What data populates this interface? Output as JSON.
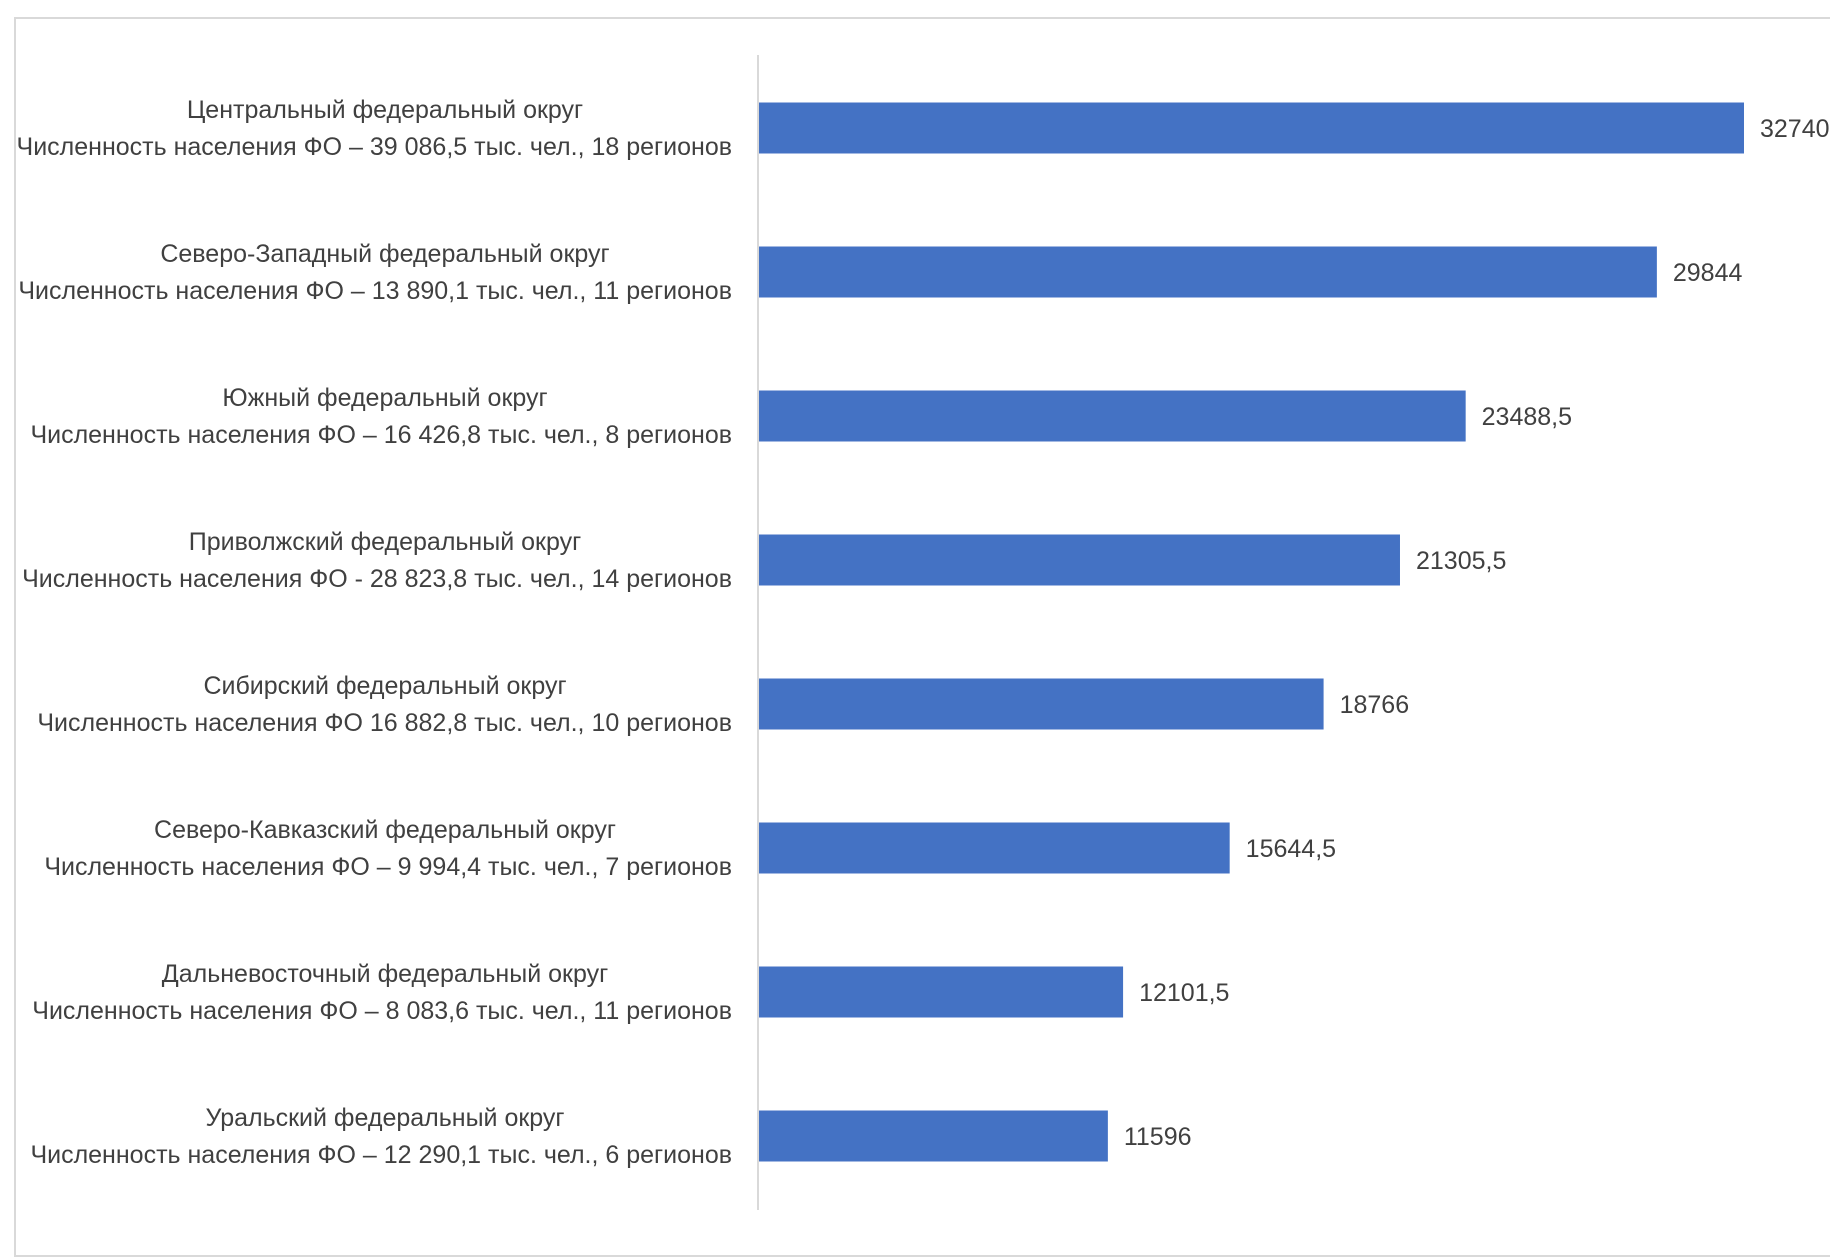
{
  "chart_data": {
    "type": "bar",
    "orientation": "horizontal",
    "title": "",
    "xlabel": "",
    "ylabel": "",
    "grid": false,
    "legend": "none",
    "bar_color": "#4472c4",
    "axis_color": "#d9d9d9",
    "text_color": "#404040",
    "xlim": [
      0,
      32740
    ],
    "categories": [
      {
        "name": "Центральный федеральный округ",
        "detail": "Численность населения ФО – 39 086,5 тыс. чел., 18 регионов"
      },
      {
        "name": "Северо-Западный федеральный округ",
        "detail": "Численность населения ФО – 13 890,1 тыс. чел., 11 регионов"
      },
      {
        "name": "Южный федеральный округ",
        "detail": "Численность населения ФО – 16 426,8 тыс. чел., 8 регионов"
      },
      {
        "name": "Приволжский федеральный округ",
        "detail": "Численность населения ФО  - 28 823,8 тыс. чел., 14 регионов"
      },
      {
        "name": "Сибирский федеральный округ",
        "detail": "Численность населения ФО 16 882,8 тыс. чел.,  10 регионов"
      },
      {
        "name": "Северо-Кавказский федеральный округ",
        "detail": "Численность населения ФО – 9 994,4 тыс. чел., 7 регионов"
      },
      {
        "name": "Дальневосточный федеральный округ",
        "detail": "Численность населения ФО – 8 083,6 тыс. чел., 11 регионов"
      },
      {
        "name": "Уральский федеральный округ",
        "detail": "Численность населения ФО – 12 290,1 тыс. чел., 6 регионов"
      }
    ],
    "values": [
      32740,
      29844,
      23488.5,
      21305.5,
      18766,
      15644.5,
      12101.5,
      11596
    ],
    "value_labels": [
      "32740",
      "29844",
      "23488,5",
      "21305,5",
      "18766",
      "15644,5",
      "12101,5",
      "11596"
    ]
  }
}
